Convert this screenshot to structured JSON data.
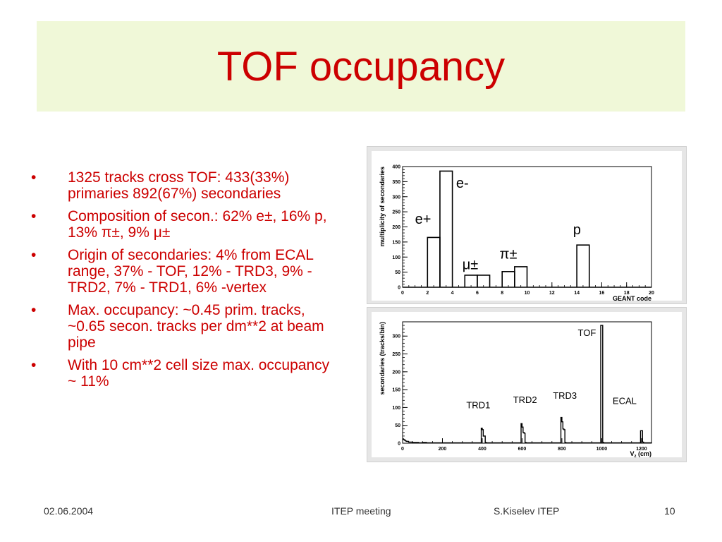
{
  "title": "TOF occupancy",
  "bullet_marker": "•",
  "bullets": [
    "1325 tracks cross TOF: 433(33%) primaries 892(67%) secondaries",
    "Composition of secon.: 62% e±, 16% p, 13% π±, 9% μ±",
    "Origin of secondaries: 4% from ECAL range, 37% - TOF, 12% - TRD3, 9% -  TRD2, 7% - TRD1, 6% -vertex",
    "Max. occupancy: ~0.45 prim. tracks, ~0.65 secon. tracks per dm**2 at beam pipe",
    "With 10 cm**2 cell size max. occupancy ~ 11%"
  ],
  "footer": {
    "date": "02.06.2004",
    "event": "ITEP meeting",
    "author": "S.Kiselev ITEP",
    "page": "10"
  },
  "chart_data": [
    {
      "type": "bar",
      "xlabel": "GEANT code",
      "ylabel": "multiplicity of secondaries",
      "xlim": [
        0,
        20
      ],
      "ylim": [
        0,
        400
      ],
      "x_ticks": [
        0,
        2,
        4,
        6,
        8,
        10,
        12,
        14,
        16,
        18,
        20
      ],
      "y_ticks": [
        0,
        50,
        100,
        150,
        200,
        250,
        300,
        350,
        400
      ],
      "bins": [
        {
          "x0": 2,
          "x1": 3,
          "value": 165
        },
        {
          "x0": 3,
          "x1": 4,
          "value": 385
        },
        {
          "x0": 5,
          "x1": 6,
          "value": 40
        },
        {
          "x0": 6,
          "x1": 7,
          "value": 40
        },
        {
          "x0": 8,
          "x1": 9,
          "value": 52
        },
        {
          "x0": 9,
          "x1": 10,
          "value": 68
        },
        {
          "x0": 14,
          "x1": 15,
          "value": 140
        }
      ],
      "annotations": [
        {
          "text": "e-",
          "x": 4.3,
          "y": 330
        },
        {
          "text": "e+",
          "x": 1.0,
          "y": 210
        },
        {
          "text": "μ±",
          "x": 4.8,
          "y": 60
        },
        {
          "text": "π±",
          "x": 7.8,
          "y": 95
        },
        {
          "text": "p",
          "x": 13.7,
          "y": 175
        }
      ]
    },
    {
      "type": "line",
      "xlabel_main": "V",
      "xlabel_sub": "z",
      "xlabel_rest": " (cm)",
      "ylabel": "secondaries (tracks/bin)",
      "xlim": [
        0,
        1250
      ],
      "ylim": [
        0,
        340
      ],
      "x_ticks": [
        0,
        200,
        400,
        600,
        800,
        1000,
        1200
      ],
      "y_ticks": [
        0,
        50,
        100,
        150,
        200,
        250,
        300
      ],
      "x": [
        0,
        5,
        10,
        15,
        20,
        30,
        40,
        50,
        60,
        80,
        100,
        110,
        120,
        390,
        395,
        400,
        405,
        410,
        415,
        420,
        590,
        595,
        600,
        605,
        610,
        615,
        620,
        790,
        795,
        800,
        805,
        810,
        815,
        820,
        990,
        995,
        1000,
        1005,
        1010,
        1190,
        1195,
        1200,
        1205,
        1210,
        1250
      ],
      "y": [
        12,
        10,
        8,
        6,
        5,
        3,
        3,
        2,
        2,
        1,
        2,
        2,
        1,
        1,
        42,
        38,
        20,
        20,
        2,
        1,
        1,
        55,
        45,
        30,
        28,
        2,
        1,
        1,
        72,
        60,
        40,
        38,
        2,
        1,
        1,
        330,
        330,
        2,
        1,
        1,
        35,
        35,
        3,
        1,
        0
      ],
      "annotations": [
        {
          "text": "TOF",
          "x": 880,
          "y": 300
        },
        {
          "text": "TRD3",
          "x": 755,
          "y": 125
        },
        {
          "text": "TRD2",
          "x": 555,
          "y": 113
        },
        {
          "text": "TRD1",
          "x": 320,
          "y": 98
        },
        {
          "text": "ECAL",
          "x": 1055,
          "y": 110
        }
      ]
    }
  ]
}
